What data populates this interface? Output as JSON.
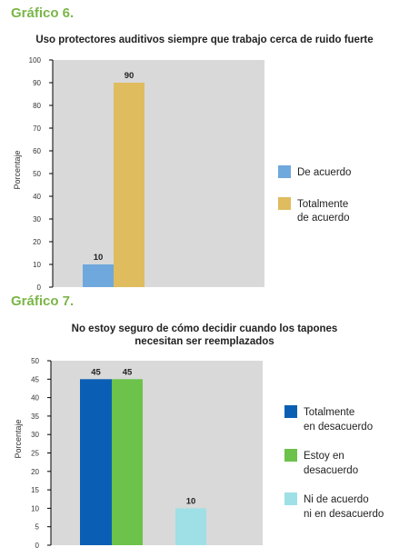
{
  "colors": {
    "heading": "#7ab648",
    "panel": "#d9d9d9",
    "axis": "#000000"
  },
  "chart_data": [
    {
      "heading": "Gráfico 6.",
      "type": "bar",
      "title": "Uso protectores auditivos siempre que trabajo cerca de ruido fuerte",
      "ylabel": "Porcentaje",
      "ylim": [
        0,
        100
      ],
      "yticks": [
        0,
        10,
        20,
        30,
        40,
        50,
        60,
        70,
        80,
        90,
        100
      ],
      "grid": false,
      "legend_position": "right",
      "series": [
        {
          "name": "De acuerdo",
          "value": 10,
          "label": "10",
          "color": "#6fa8dc",
          "legend_lines": [
            "De acuerdo"
          ]
        },
        {
          "name": "Totalmente de acuerdo",
          "value": 90,
          "label": "90",
          "color": "#dfbc5e",
          "legend_lines": [
            "Totalmente",
            "de acuerdo"
          ]
        }
      ]
    },
    {
      "heading": "Gráfico 7.",
      "type": "bar",
      "title_lines": [
        "No estoy seguro de cómo decidir cuando los tapones",
        "necesitan ser reemplazados"
      ],
      "ylabel": "Porcentaje",
      "ylim": [
        0,
        50
      ],
      "yticks": [
        0,
        5,
        10,
        15,
        20,
        25,
        30,
        35,
        40,
        45,
        50
      ],
      "grid": false,
      "legend_position": "right",
      "series": [
        {
          "name": "Totalmente en desacuerdo",
          "value": 45,
          "label": "45",
          "color": "#0a5fb4",
          "legend_lines": [
            "Totalmente",
            "en desacuerdo"
          ]
        },
        {
          "name": "Estoy en desacuerdo",
          "value": 45,
          "label": "45",
          "color": "#6cc24a",
          "legend_lines": [
            "Estoy en",
            "desacuerdo"
          ]
        },
        {
          "name": "Ni de acuerdo ni en desacuerdo",
          "value": 10,
          "label": "10",
          "color": "#9ee0e6",
          "legend_lines": [
            "Ni de acuerdo",
            "ni en desacuerdo"
          ]
        }
      ]
    }
  ]
}
